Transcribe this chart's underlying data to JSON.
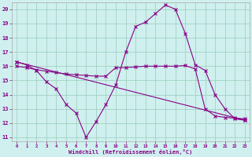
{
  "xlabel": "Windchill (Refroidissement éolien,°C)",
  "xlim": [
    -0.5,
    23.5
  ],
  "ylim": [
    10.7,
    20.5
  ],
  "yticks": [
    11,
    12,
    13,
    14,
    15,
    16,
    17,
    18,
    19,
    20
  ],
  "xticks": [
    0,
    1,
    2,
    3,
    4,
    5,
    6,
    7,
    8,
    9,
    10,
    11,
    12,
    13,
    14,
    15,
    16,
    17,
    18,
    19,
    20,
    21,
    22,
    23
  ],
  "bg_color": "#cff0ee",
  "line_color": "#880088",
  "line1_x": [
    0,
    1,
    2,
    3,
    4,
    5,
    6,
    7,
    8,
    9,
    10,
    11,
    12,
    13,
    14,
    15,
    16,
    17,
    18,
    19,
    20,
    21,
    22,
    23
  ],
  "line1_y": [
    16.3,
    16.1,
    15.7,
    14.9,
    14.4,
    13.3,
    12.7,
    11.0,
    12.1,
    13.3,
    14.7,
    17.0,
    18.8,
    19.1,
    19.7,
    20.3,
    20.0,
    18.3,
    16.1,
    15.7,
    14.0,
    13.0,
    12.3,
    12.2
  ],
  "line2_x": [
    0,
    1,
    2,
    3,
    4,
    5,
    6,
    7,
    8,
    9,
    10,
    11,
    12,
    13,
    14,
    15,
    16,
    17,
    18,
    19,
    20,
    21,
    22,
    23
  ],
  "line2_y": [
    16.0,
    15.9,
    15.75,
    15.65,
    15.55,
    15.45,
    15.4,
    15.35,
    15.3,
    15.3,
    15.9,
    15.9,
    15.95,
    16.0,
    16.0,
    16.0,
    16.0,
    16.05,
    15.8,
    13.0,
    12.5,
    12.4,
    12.35,
    12.3
  ],
  "line3_x": [
    0,
    23
  ],
  "line3_y": [
    16.3,
    12.2
  ]
}
